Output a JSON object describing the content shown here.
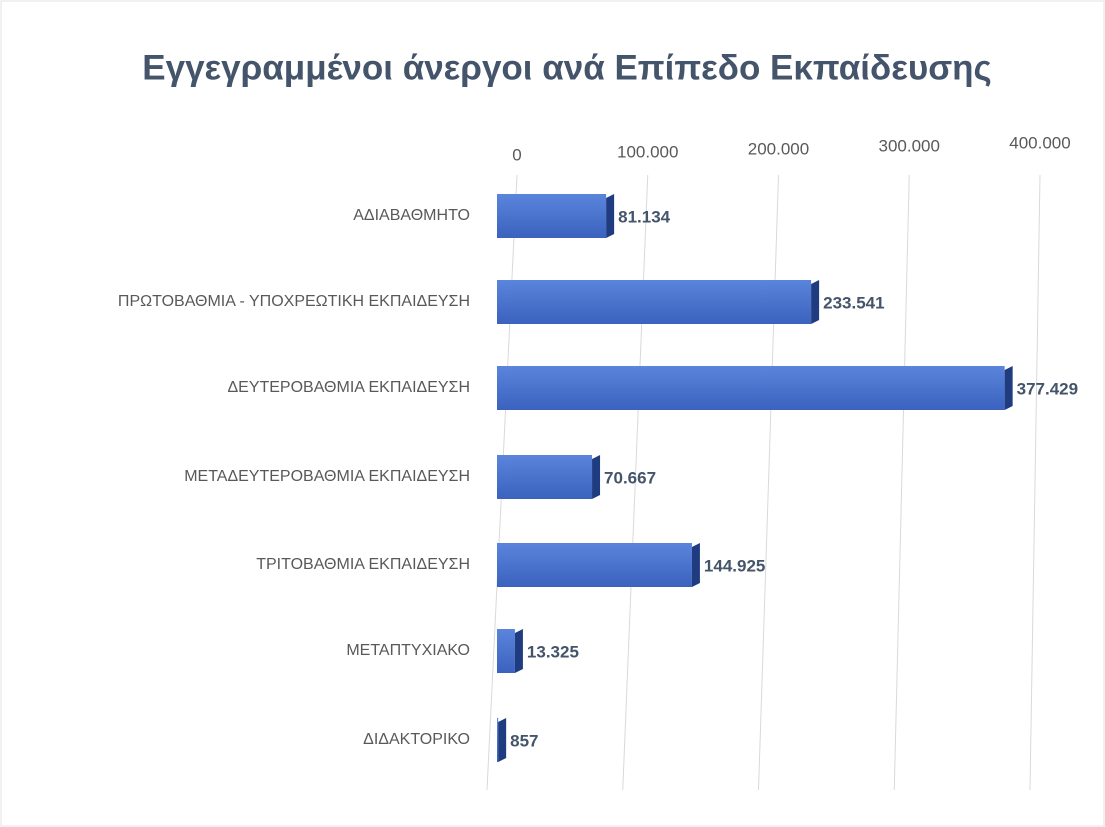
{
  "chart_data": {
    "type": "bar",
    "orientation": "horizontal",
    "title": "Εγγεγραμμένοι άνεργοι ανά Επίπεδο Εκπαίδευσης",
    "categories": [
      "ΑΔΙΑΒΑΘΜΗΤΟ",
      "ΠΡΩΤΟΒΑΘΜΙΑ - ΥΠΟΧΡΕΩΤΙΚΗ ΕΚΠΑΙΔΕΥΣΗ",
      "ΔΕΥΤΕΡΟΒΑΘΜΙΑ ΕΚΠΑΙΔΕΥΣΗ",
      "ΜΕΤΑΔΕΥΤΕΡΟΒΑΘΜΙΑ ΕΚΠΑΙΔΕΥΣΗ",
      "ΤΡΙΤΟΒΑΘΜΙΑ ΕΚΠΑΙΔΕΥΣΗ",
      "ΜΕΤΑΠΤΥΧΙΑΚΟ",
      "ΔΙΔΑΚΤΟΡΙΚΟ"
    ],
    "values": [
      81134,
      233541,
      377429,
      70667,
      144925,
      13325,
      857
    ],
    "value_labels": [
      "81.134",
      "233.541",
      "377.429",
      "70.667",
      "144.925",
      "13.325",
      "857"
    ],
    "color": "#4472c4",
    "xlim": [
      0,
      400000
    ],
    "xticks": [
      0,
      {
        "value": 100000,
        "label": "100.000"
      },
      {
        "value": 200000,
        "label": "200.000"
      },
      {
        "value": 300000,
        "label": "300.000"
      },
      {
        "value": 400000,
        "label": "400.000"
      }
    ],
    "grid": true
  }
}
